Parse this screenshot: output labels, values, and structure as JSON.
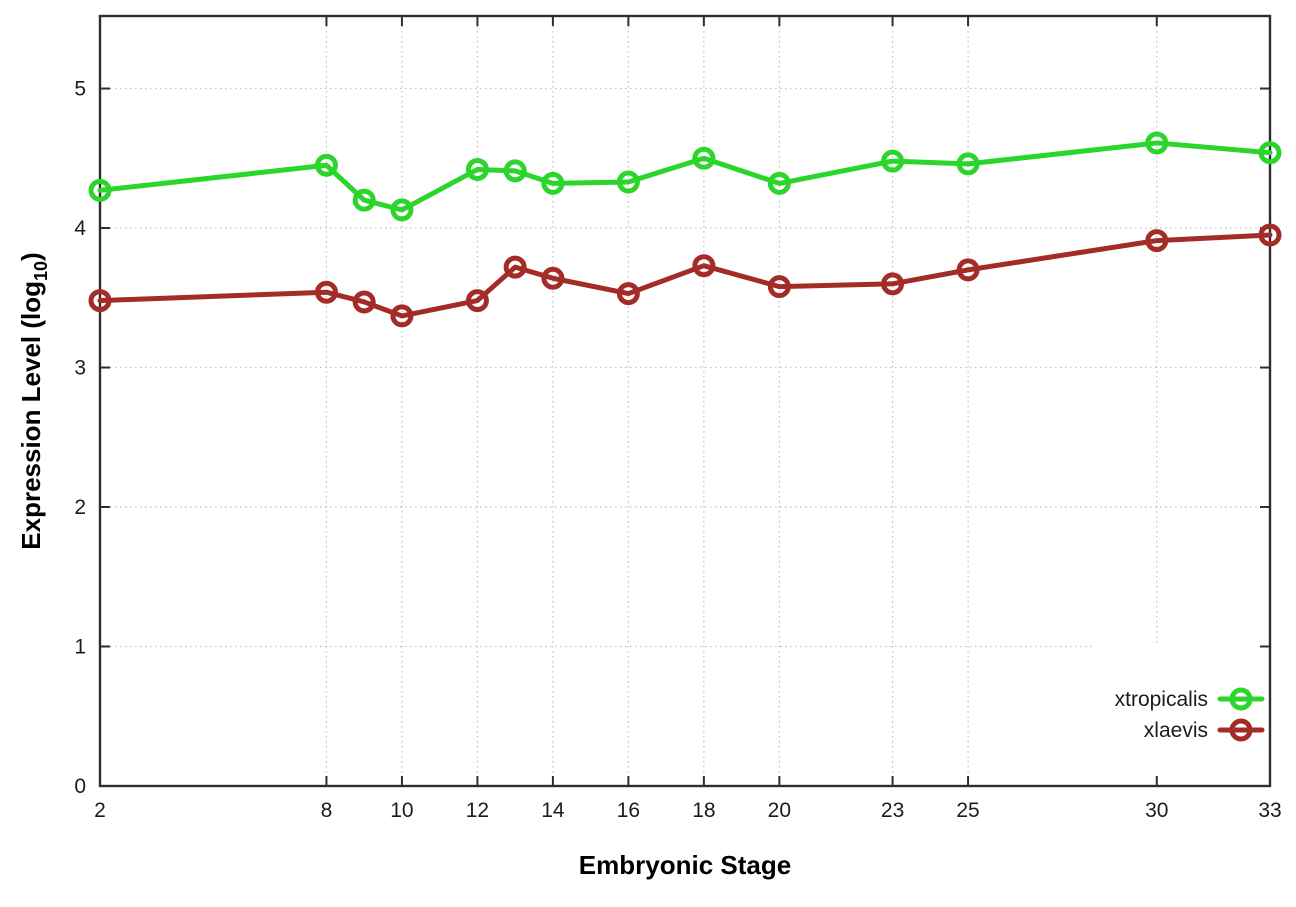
{
  "figure": {
    "background": "#ffffff"
  },
  "chart_data": {
    "type": "line",
    "title": "",
    "xlabel": "Embryonic Stage",
    "ylabel": "Expression Level (log10)",
    "ylabel_parts": {
      "prefix": "Expression Level (log",
      "subscript": "10",
      "suffix": ")"
    },
    "x": [
      2,
      8,
      9,
      10,
      12,
      13,
      14,
      16,
      18,
      20,
      23,
      25,
      30,
      33
    ],
    "series": [
      {
        "name": "xtropicalis",
        "color": "#2bd52b",
        "marker": "open-circle",
        "values": [
          4.27,
          4.45,
          4.2,
          4.13,
          4.42,
          4.41,
          4.32,
          4.33,
          4.5,
          4.32,
          4.48,
          4.46,
          4.61,
          4.54
        ]
      },
      {
        "name": "xlaevis",
        "color": "#a32c27",
        "marker": "open-circle",
        "values": [
          3.48,
          3.54,
          3.47,
          3.37,
          3.48,
          3.72,
          3.64,
          3.53,
          3.73,
          3.58,
          3.6,
          3.7,
          3.91,
          3.95
        ]
      }
    ],
    "xlim": [
      2,
      33
    ],
    "ylim": [
      0,
      5.52
    ],
    "xticks": [
      2,
      8,
      10,
      12,
      14,
      16,
      18,
      20,
      23,
      25,
      30,
      33
    ],
    "yticks": [
      0,
      1,
      2,
      3,
      4,
      5
    ],
    "grid": true,
    "grid_style": "dotted",
    "legend_position": "inside-bottom-right",
    "legend_opaque": true
  },
  "style_colors": {
    "border": "#2e2e2e",
    "grid": "#c0c0c0",
    "tick_text": "#1c1c1c",
    "title_text": "#000000",
    "key_background": "#ffffff"
  }
}
